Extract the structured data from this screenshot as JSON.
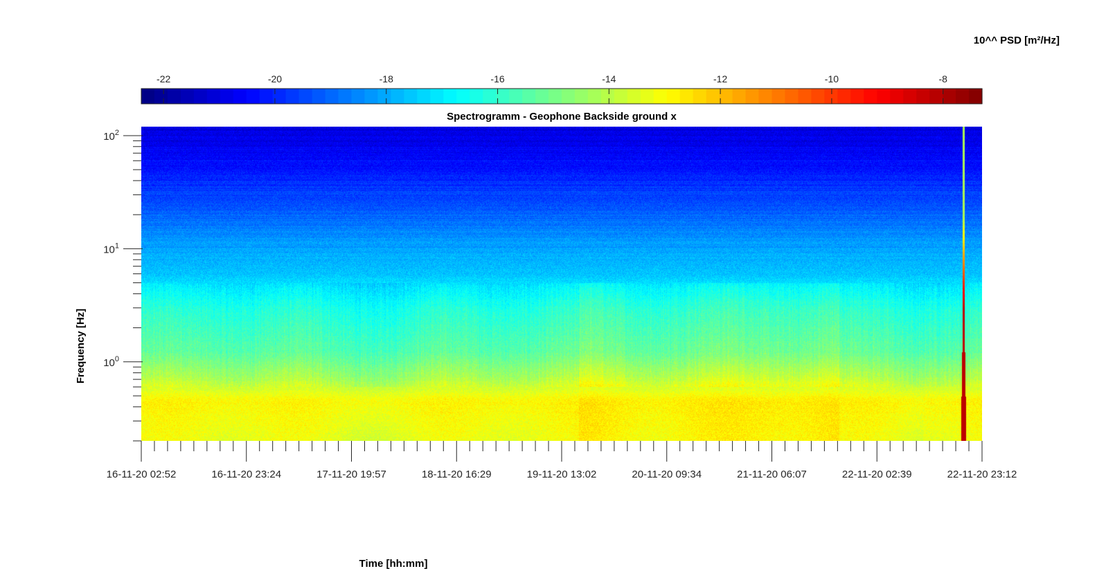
{
  "chart_data": {
    "type": "heatmap",
    "title": "Spectrogramm - Geophone Backside ground x",
    "xlabel": "Time [hh:mm]",
    "ylabel": "Frequency [Hz]",
    "y_scale": "log",
    "ylim": [
      0.2,
      120
    ],
    "y_ticks": [
      {
        "base": "10",
        "exp": "2",
        "value": 100
      },
      {
        "base": "10",
        "exp": "1",
        "value": 10
      },
      {
        "base": "10",
        "exp": "0",
        "value": 1
      }
    ],
    "x_ticks": [
      "16-11-20 02:52",
      "16-11-20 23:24",
      "17-11-20 19:57",
      "18-11-20 16:29",
      "19-11-20 13:02",
      "20-11-20 09:34",
      "21-11-20 06:07",
      "22-11-20 02:39",
      "22-11-20 23:12"
    ],
    "x_minor_per_major": 8,
    "colorbar": {
      "label": "10^^ PSD [m²/Hz]",
      "ticks": [
        "-22",
        "-20",
        "-18",
        "-16",
        "-14",
        "-12",
        "-10",
        "-8"
      ],
      "tick_values": [
        -22,
        -20,
        -18,
        -16,
        -14,
        -12,
        -10,
        -8
      ],
      "range": [
        -22.4,
        -7.3
      ],
      "colormap": "jet",
      "steps": 64
    },
    "z_profile_by_frequency": [
      {
        "f": 120,
        "z": -21.0
      },
      {
        "f": 60,
        "z": -20.4
      },
      {
        "f": 30,
        "z": -19.6
      },
      {
        "f": 12,
        "z": -18.3
      },
      {
        "f": 6,
        "z": -17.6
      },
      {
        "f": 3,
        "z": -16.3
      },
      {
        "f": 1.2,
        "z": -15.4
      },
      {
        "f": 0.7,
        "z": -14.2
      },
      {
        "f": 0.45,
        "z": -12.9
      },
      {
        "f": 0.2,
        "z": -13.3
      }
    ],
    "events": [
      {
        "time": "22-11-20 ~18:00",
        "note": "broadband transient, up to 0 to -7 at low frequencies"
      }
    ]
  }
}
